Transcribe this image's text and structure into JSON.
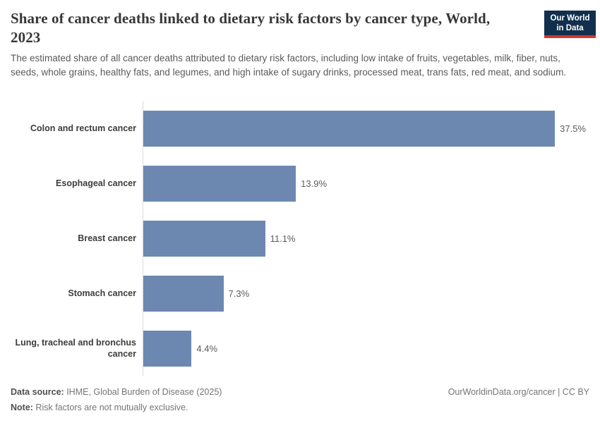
{
  "header": {
    "title": "Share of cancer deaths linked to dietary risk factors by cancer type, World, 2023",
    "subtitle": "The estimated share of all cancer deaths attributed to dietary risk factors, including low intake of fruits, vegetables, milk, fiber, nuts, seeds, whole grains, healthy fats, and legumes, and high intake of sugary drinks, processed meat, trans fats, red meat, and sodium.",
    "logo": {
      "line1": "Our World",
      "line2": "in Data",
      "bg_color": "#12304e",
      "accent_color": "#d5342c"
    }
  },
  "chart_data": {
    "type": "bar",
    "orientation": "horizontal",
    "title": "Share of cancer deaths linked to dietary risk factors by cancer type, World, 2023",
    "categories": [
      "Colon and rectum cancer",
      "Esophageal cancer",
      "Breast cancer",
      "Stomach cancer",
      "Lung, tracheal and bronchus cancer"
    ],
    "values": [
      37.5,
      13.9,
      11.1,
      7.3,
      4.4
    ],
    "value_labels": [
      "37.5%",
      "13.9%",
      "11.1%",
      "7.3%",
      "4.4%"
    ],
    "unit": "%",
    "xlim": [
      0,
      40
    ],
    "bar_color": "#6d88b0",
    "axis_line_color": "#dcdcdc",
    "grid": false,
    "legend": "none"
  },
  "footer": {
    "datasource_label": "Data source:",
    "datasource_value": " IHME, Global Burden of Disease (2025)",
    "note_label": "Note:",
    "note_value": " Risk factors are not mutually exclusive.",
    "link": "OurWorldinData.org/cancer | CC BY"
  }
}
